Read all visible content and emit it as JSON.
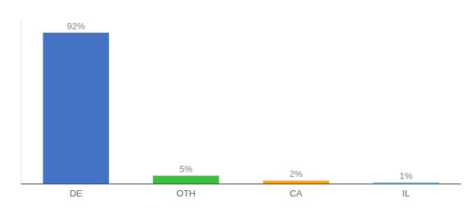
{
  "chart_data": {
    "type": "bar",
    "categories": [
      "DE",
      "OTH",
      "CA",
      "IL"
    ],
    "values": [
      92,
      5,
      2,
      1
    ],
    "value_labels": [
      "92%",
      "5%",
      "2%",
      "1%"
    ],
    "colors": [
      "#4472C4",
      "#3DBD3D",
      "#FFA500",
      "#87CEEB"
    ],
    "ylim": [
      0,
      100
    ],
    "data_labels": true,
    "tick_labels": "x"
  }
}
